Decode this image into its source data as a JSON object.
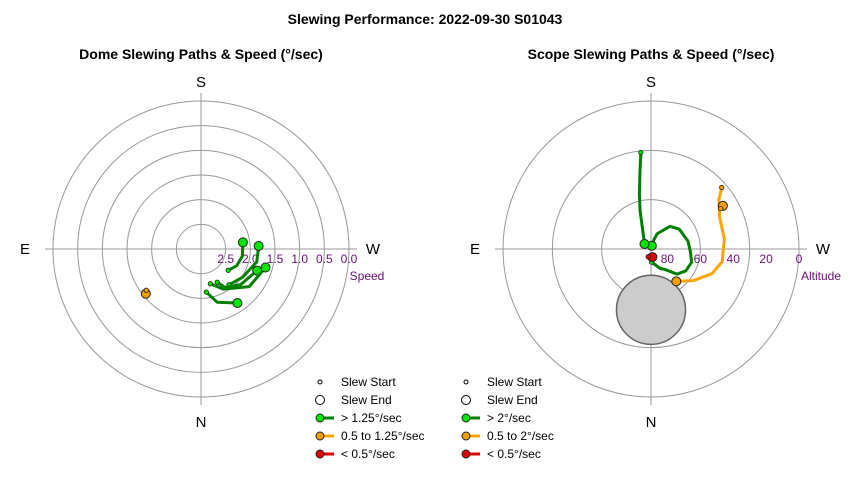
{
  "title": "Slewing Performance: 2022-09-30 S01043",
  "colors": {
    "fast": "#00e600",
    "fast_line": "#008000",
    "medium": "#f0a000",
    "medium_line": "#ffa500",
    "slow": "#e00000",
    "grid": "#999999",
    "tick_label": "#6b0f7a",
    "obstruction": "#cccccc"
  },
  "chart_data": [
    {
      "type": "polar",
      "title": "Dome Slewing Paths & Speed (°/sec)",
      "compass": {
        "top": "S",
        "bottom": "N",
        "left": "E",
        "right": "W"
      },
      "radial_axis": {
        "label": "Speed",
        "range": [
          3.0,
          0.0
        ],
        "ticks": [
          2.5,
          2.0,
          1.5,
          1.0,
          0.5,
          0.0
        ],
        "tick_labels": [
          "2.5",
          "2.0",
          "1.5",
          "1.0",
          "0.5",
          "0.0"
        ],
        "rings": [
          2.5,
          2.0,
          1.5,
          1.0,
          0.5
        ]
      },
      "series": [
        {
          "cls": "fast",
          "path": [
            [
              232,
              2.3
            ],
            [
              245,
              2.2
            ],
            [
              260,
              2.15
            ],
            [
              279,
              2.14
            ]
          ]
        },
        {
          "cls": "fast",
          "path": [
            [
              218,
              2.08
            ],
            [
              236,
              1.98
            ],
            [
              257,
              1.84
            ],
            [
              273,
              1.83
            ]
          ]
        },
        {
          "cls": "fast",
          "path": [
            [
              206,
              2.25
            ],
            [
              212,
              2.08
            ],
            [
              228,
              1.92
            ],
            [
              249,
              1.78
            ]
          ]
        },
        {
          "cls": "fast",
          "path": [
            [
              195,
              2.27
            ],
            [
              209,
              2.07
            ],
            [
              232,
              1.76
            ],
            [
              254,
              1.64
            ]
          ]
        },
        {
          "cls": "fast",
          "path": [
            [
              187,
              2.12
            ],
            [
              197,
              1.87
            ],
            [
              214,
              1.68
            ]
          ]
        },
        {
          "cls": "medium",
          "path": [
            [
              127,
              1.61
            ],
            [
              129,
              1.56
            ]
          ]
        }
      ],
      "legend": [
        "Slew Start",
        "Slew End",
        "> 1.25°/sec",
        "0.5 to 1.25°/sec",
        "< 0.5°/sec"
      ]
    },
    {
      "type": "polar",
      "title": "Scope Slewing Paths & Speed (°/sec)",
      "compass": {
        "top": "S",
        "bottom": "N",
        "left": "E",
        "right": "W"
      },
      "radial_axis": {
        "label": "Altitude",
        "range": [
          90,
          0
        ],
        "ticks": [
          80,
          60,
          40,
          20,
          0
        ],
        "tick_labels": [
          "80",
          "60",
          "40",
          "20",
          "0"
        ],
        "rings": [
          60,
          30
        ]
      },
      "obstruction": {
        "azimuth": 180,
        "altitude": 53,
        "radius_deg": 21
      },
      "series": [
        {
          "cls": "fast",
          "path": [
            [
              183,
              82
            ],
            [
              205,
              77
            ],
            [
              214,
              75
            ],
            [
              226,
              68
            ],
            [
              238,
              65
            ],
            [
              252,
              64
            ],
            [
              266,
              66
            ],
            [
              282,
              67
            ],
            [
              305,
              69
            ],
            [
              320,
              72
            ],
            [
              338,
              80
            ],
            [
              342,
              84
            ],
            [
              346,
              88
            ]
          ]
        },
        {
          "cls": "fast",
          "path": [
            [
              6,
              31
            ],
            [
              8,
              42
            ],
            [
              12,
              56
            ],
            [
              16,
              66
            ],
            [
              22,
              76
            ],
            [
              52,
              85
            ]
          ]
        },
        {
          "cls": "medium",
          "path": [
            [
              311,
              33
            ],
            [
              306,
              39
            ],
            [
              295,
              44
            ],
            [
              278,
              45
            ],
            [
              260,
              46
            ],
            [
              248,
              50
            ],
            [
              233,
              58
            ],
            [
              218,
              65
            ]
          ]
        },
        {
          "cls": "medium",
          "path": [
            [
              300,
              41
            ],
            [
              301,
              39
            ]
          ]
        },
        {
          "cls": "slow",
          "path": [
            [
              160,
              85
            ],
            [
              168,
              84
            ],
            [
              190,
              85
            ]
          ]
        }
      ],
      "legend": [
        "Slew Start",
        "Slew End",
        "> 2°/sec",
        "0.5 to 2°/sec",
        "< 0.5°/sec"
      ]
    }
  ]
}
